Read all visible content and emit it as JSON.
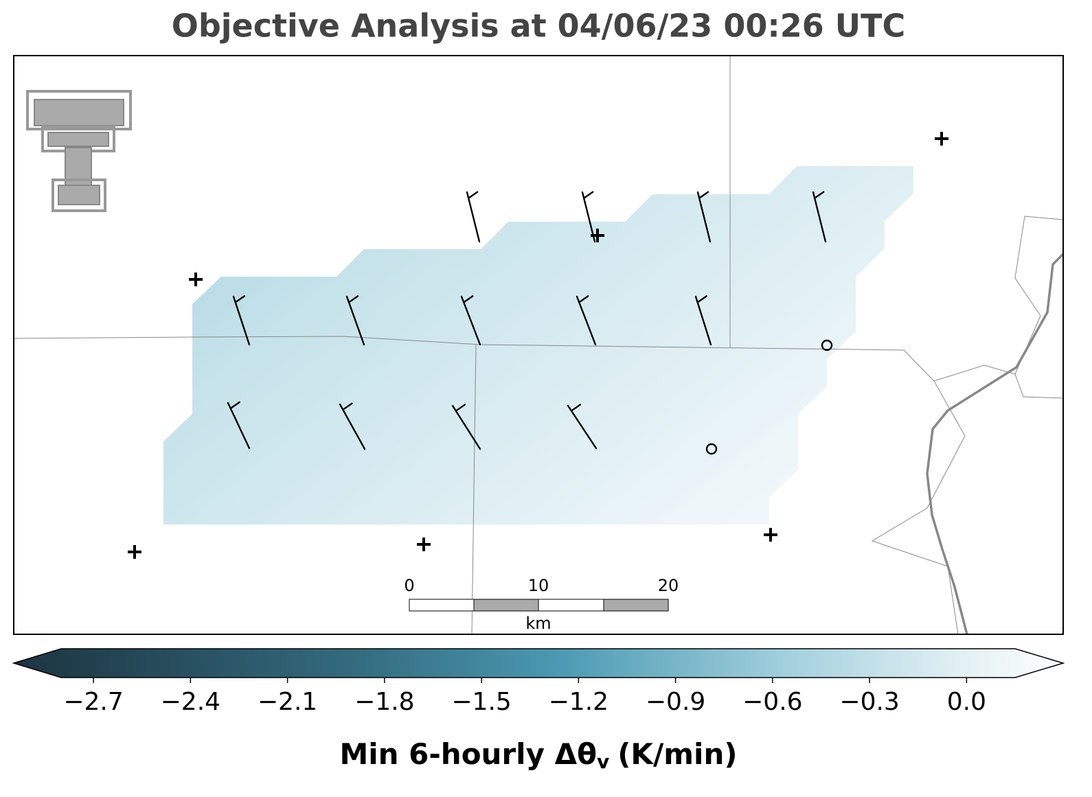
{
  "title": "Objective Analysis at 04/06/23 00:26 UTC",
  "scale_bar": {
    "ticks": [
      0,
      10,
      20
    ],
    "unit": "km"
  },
  "colorbar": {
    "lim": [
      -2.8,
      0.15
    ],
    "ticks": [
      {
        "value": -2.7,
        "label": "−2.7"
      },
      {
        "value": -2.4,
        "label": "−2.4"
      },
      {
        "value": -2.1,
        "label": "−2.1"
      },
      {
        "value": -1.8,
        "label": "−1.8"
      },
      {
        "value": -1.5,
        "label": "−1.5"
      },
      {
        "value": -1.2,
        "label": "−1.2"
      },
      {
        "value": -0.9,
        "label": "−0.9"
      },
      {
        "value": -0.6,
        "label": "−0.6"
      },
      {
        "value": -0.3,
        "label": "−0.3"
      },
      {
        "value": 0.0,
        "label": "0.0"
      }
    ],
    "label": {
      "text": "Min 6-hourly Δθ",
      "subscript": "v",
      "units": "(K/min)"
    }
  }
}
